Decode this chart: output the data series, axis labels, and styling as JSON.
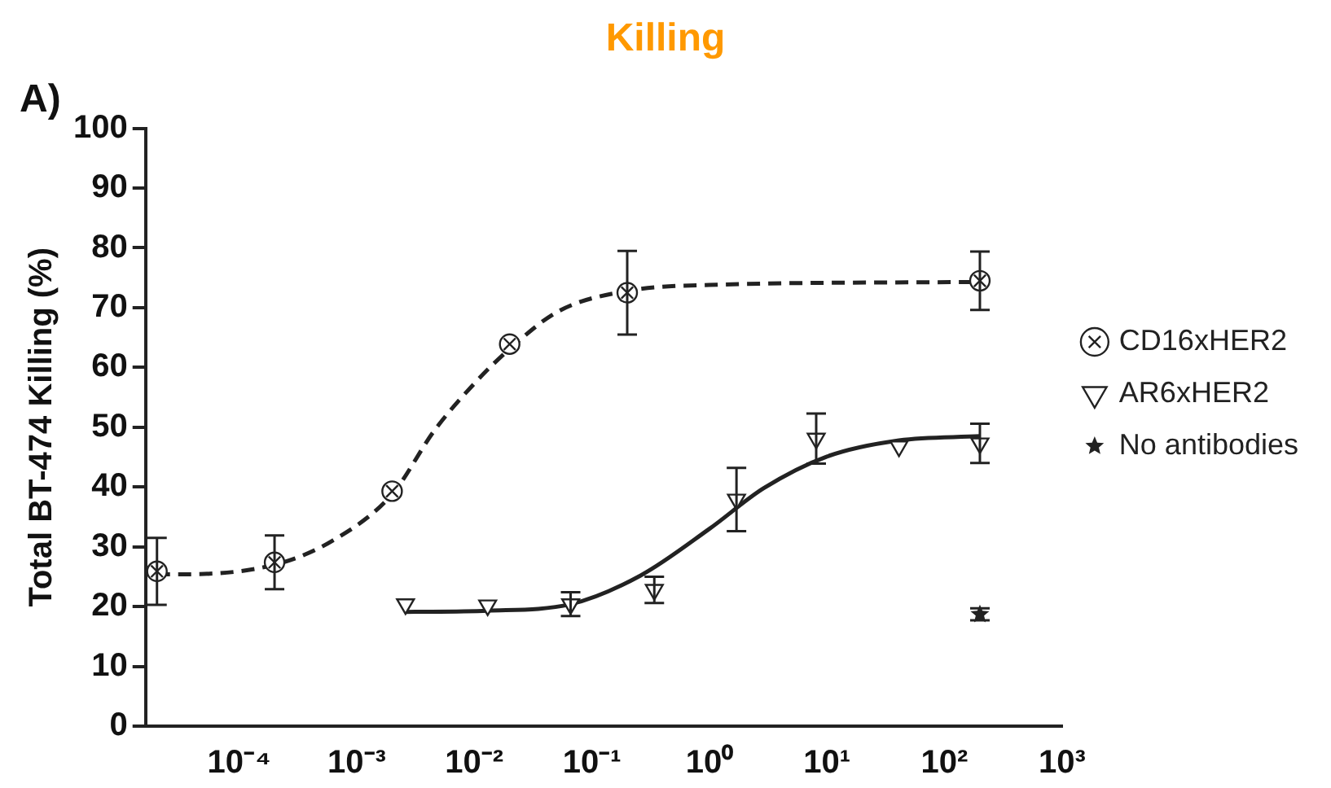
{
  "chart_data": {
    "type": "scatter",
    "title": "Killing",
    "ylabel": "Total BT-474 Killing (%)",
    "annotations": [
      "A)"
    ],
    "log": "x",
    "grid": false,
    "legend": "right",
    "xlim": [
      1.6e-05,
      1000
    ],
    "xticks": [
      {
        "value": 0.0001,
        "label": "10⁻⁴"
      },
      {
        "value": 0.001,
        "label": "10⁻³"
      },
      {
        "value": 0.01,
        "label": "10⁻²"
      },
      {
        "value": 0.1,
        "label": "10⁻¹"
      },
      {
        "value": 1,
        "label": "10⁰"
      },
      {
        "value": 10,
        "label": "10¹"
      },
      {
        "value": 100,
        "label": "10²"
      },
      {
        "value": 1000,
        "label": "10³"
      }
    ],
    "ylim": [
      0,
      100
    ],
    "yticks": [
      0,
      10,
      20,
      30,
      40,
      50,
      60,
      70,
      80,
      90,
      100
    ],
    "series": [
      {
        "name": "CD16xHER2",
        "type": "scatter",
        "marker": "circle",
        "color": "#222222",
        "x": [
          2e-05,
          0.0002,
          0.002,
          0.02,
          0.2,
          200
        ],
        "values": [
          25.9,
          27.4,
          39.3,
          63.9,
          72.5,
          74.5
        ],
        "errors": [
          5.6,
          4.5,
          null,
          null,
          7,
          4.9
        ]
      },
      {
        "name": "AR6xHER2",
        "type": "scatter",
        "marker": "triangle",
        "color": "#222222",
        "x": [
          0.0026,
          0.013,
          0.066,
          0.34,
          1.7,
          8.1,
          41,
          200
        ],
        "values": [
          20.4,
          20.2,
          20.4,
          22.8,
          37.9,
          48.1,
          46.8,
          47.3
        ],
        "errors": [
          null,
          null,
          2,
          2.2,
          5.3,
          4.2,
          null,
          3.3
        ]
      },
      {
        "name": "No antibodies",
        "type": "scatter",
        "marker": "star",
        "color": "#222222",
        "x": [
          200
        ],
        "values": [
          18.7
        ],
        "errors": [
          1
        ]
      },
      {
        "type": "line",
        "marker": "none",
        "line_style": "dashed",
        "color": "#222222",
        "x": [
          2e-05,
          3.2e-05,
          0.0002,
          0.00062,
          0.002,
          0.0046,
          0.01,
          0.02,
          0.052,
          0.2,
          1,
          200
        ],
        "values": [
          25.4,
          25.4,
          27,
          31,
          38.8,
          49.5,
          57.3,
          63.1,
          69.4,
          72.8,
          73.8,
          74.3
        ]
      },
      {
        "type": "line",
        "marker": "none",
        "line_style": "solid",
        "color": "#222222",
        "x": [
          0.0026,
          0.013,
          0.066,
          0.26,
          1,
          2.9,
          10,
          41,
          200
        ],
        "values": [
          19.1,
          19.3,
          20.4,
          25.2,
          33,
          39.8,
          45.1,
          47.8,
          48.5
        ]
      }
    ]
  }
}
